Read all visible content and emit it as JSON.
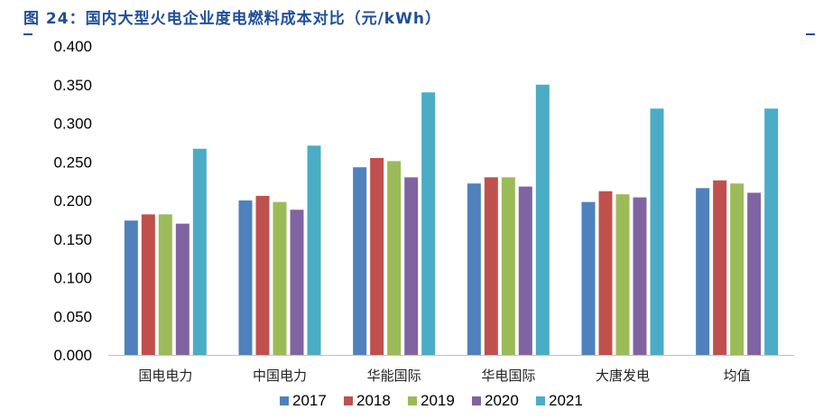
{
  "chart_data": {
    "type": "bar",
    "title": "图 24：国内大型火电企业度电燃料成本对比（元/kWh）",
    "xlabel": "",
    "ylabel": "",
    "ylim": [
      0,
      0.4
    ],
    "yticks": [
      "0.000",
      "0.050",
      "0.100",
      "0.150",
      "0.200",
      "0.250",
      "0.300",
      "0.350",
      "0.400"
    ],
    "grid": false,
    "legend_position": "bottom",
    "categories": [
      "国电电力",
      "中国电力",
      "华能国际",
      "华电国际",
      "大唐发电",
      "均值"
    ],
    "series": [
      {
        "name": "2017",
        "color": "#4f81bd",
        "values": [
          0.174,
          0.2,
          0.243,
          0.222,
          0.198,
          0.216
        ]
      },
      {
        "name": "2018",
        "color": "#c0504d",
        "values": [
          0.182,
          0.206,
          0.255,
          0.23,
          0.212,
          0.226
        ]
      },
      {
        "name": "2019",
        "color": "#9bbb59",
        "values": [
          0.182,
          0.198,
          0.251,
          0.23,
          0.208,
          0.222
        ]
      },
      {
        "name": "2020",
        "color": "#8064a2",
        "values": [
          0.17,
          0.188,
          0.23,
          0.218,
          0.204,
          0.21
        ]
      },
      {
        "name": "2021",
        "color": "#4bacc6",
        "values": [
          0.267,
          0.271,
          0.34,
          0.35,
          0.319,
          0.319
        ]
      }
    ]
  }
}
